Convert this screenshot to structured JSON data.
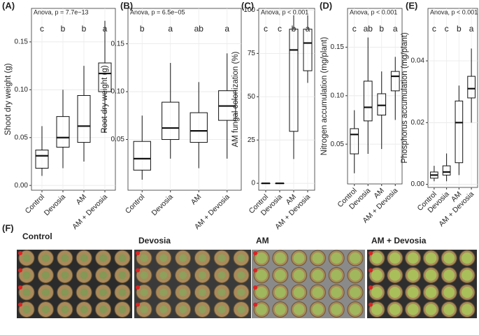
{
  "chart_data": [
    {
      "type": "box",
      "panel_label": "(A)",
      "ylabel": "Shoot dry weight (g)",
      "annotation": "Anova, p = 7.7e−13",
      "categories": [
        "Control",
        "Devosia",
        "AM",
        "AM + Devosia"
      ],
      "letters": [
        "c",
        "b",
        "b",
        "a"
      ],
      "boxes": [
        {
          "low": 0.01,
          "q1": 0.018,
          "median": 0.031,
          "q3": 0.037,
          "high": 0.062
        },
        {
          "low": 0.018,
          "q1": 0.04,
          "median": 0.05,
          "q3": 0.072,
          "high": 0.1
        },
        {
          "low": 0.025,
          "q1": 0.045,
          "median": 0.062,
          "q3": 0.094,
          "high": 0.125
        },
        {
          "low": 0.055,
          "q1": 0.098,
          "median": 0.117,
          "q3": 0.128,
          "high": 0.172
        }
      ],
      "ylim": [
        -0.005,
        0.185
      ],
      "yticks": [
        {
          "value": 0,
          "label": "0.00"
        },
        {
          "value": 0.05,
          "label": "0.05"
        },
        {
          "value": 0.1,
          "label": "0.10"
        },
        {
          "value": 0.15,
          "label": "0.15"
        }
      ],
      "grid": true
    },
    {
      "type": "box",
      "panel_label": "(B)",
      "ylabel": "Root dry weight (g)",
      "annotation": "Anova, p = 6.5e−05",
      "categories": [
        "Control",
        "Devosia",
        "AM",
        "AM + Devosia"
      ],
      "letters": [
        "b",
        "a",
        "ab",
        "a"
      ],
      "boxes": [
        {
          "low": 0.008,
          "q1": 0.018,
          "median": 0.03,
          "q3": 0.048,
          "high": 0.075
        },
        {
          "low": 0.03,
          "q1": 0.05,
          "median": 0.062,
          "q3": 0.089,
          "high": 0.13
        },
        {
          "low": 0.02,
          "q1": 0.047,
          "median": 0.059,
          "q3": 0.078,
          "high": 0.11
        },
        {
          "low": 0.03,
          "q1": 0.07,
          "median": 0.085,
          "q3": 0.101,
          "high": 0.14
        }
      ],
      "ylim": [
        -0.003,
        0.187
      ],
      "yticks": [
        0.05,
        {
          "value": 0.1,
          "label": "0.10"
        },
        0.15
      ],
      "grid": true
    },
    {
      "type": "box",
      "panel_label": "(C)",
      "ylabel": "AM fungal colonization (%)",
      "annotation": "Anova, p < 0.001",
      "categories": [
        "Control",
        "Devosia",
        "AM",
        "AM + Devosia"
      ],
      "letters": [
        "c",
        "c",
        "b",
        "a"
      ],
      "boxes": [
        {
          "low": 0,
          "q1": 0,
          "median": 0,
          "q3": 0,
          "high": 0
        },
        {
          "low": 0,
          "q1": 0,
          "median": 0,
          "q3": 0,
          "high": 0
        },
        {
          "low": 14,
          "q1": 30,
          "median": 77,
          "q3": 89,
          "high": 97
        },
        {
          "low": 58,
          "q1": 65,
          "median": 81,
          "q3": 89,
          "high": 97
        }
      ],
      "ylim": [
        -4,
        101
      ],
      "yticks": [
        0,
        25,
        50,
        75,
        100
      ],
      "grid": true
    },
    {
      "type": "box",
      "panel_label": "(D)",
      "ylabel": "Nitrogen accumulation (mg/plant)",
      "annotation": "Anova, p < 0.001",
      "categories": [
        "Control",
        "Devosia",
        "AM",
        "AM + Devosia"
      ],
      "letters": [
        "c",
        "ab",
        "b",
        "a"
      ],
      "boxes": [
        {
          "low": 0.02,
          "q1": 0.04,
          "median": 0.06,
          "q3": 0.066,
          "high": 0.085
        },
        {
          "low": 0.04,
          "q1": 0.074,
          "median": 0.088,
          "q3": 0.115,
          "high": 0.16
        },
        {
          "low": 0.045,
          "q1": 0.08,
          "median": 0.09,
          "q3": 0.102,
          "high": 0.125
        },
        {
          "low": 0.075,
          "q1": 0.105,
          "median": 0.12,
          "q3": 0.125,
          "high": 0.14
        }
      ],
      "ylim": [
        0.009,
        0.19
      ],
      "yticks": [
        0.05,
        {
          "value": 0.1,
          "label": "0.10"
        },
        0.15
      ],
      "grid": true
    },
    {
      "type": "box",
      "panel_label": "(E)",
      "ylabel": "Phosphorus accumulation (mg/plant)",
      "annotation": "Anova, p < 0.001",
      "categories": [
        "Control",
        "Devosia",
        "AM",
        "AM + Devosia"
      ],
      "letters": [
        "c",
        "c",
        "b",
        "a"
      ],
      "boxes": [
        {
          "low": 0.001,
          "q1": 0.002,
          "median": 0.003,
          "q3": 0.004,
          "high": 0.006
        },
        {
          "low": 0.001,
          "q1": 0.003,
          "median": 0.004,
          "q3": 0.006,
          "high": 0.01
        },
        {
          "low": 0.003,
          "q1": 0.007,
          "median": 0.02,
          "q3": 0.027,
          "high": 0.032
        },
        {
          "low": 0.02,
          "q1": 0.028,
          "median": 0.031,
          "q3": 0.035,
          "high": 0.044
        }
      ],
      "ylim": [
        -0.001,
        0.057
      ],
      "yticks": [
        {
          "value": 0,
          "label": "0.00"
        },
        0.02,
        0.04
      ],
      "grid": true
    }
  ],
  "photos": {
    "panel_label": "(F)",
    "titles": [
      "Control",
      "Devosia",
      "AM",
      "AM + Devosia"
    ]
  }
}
